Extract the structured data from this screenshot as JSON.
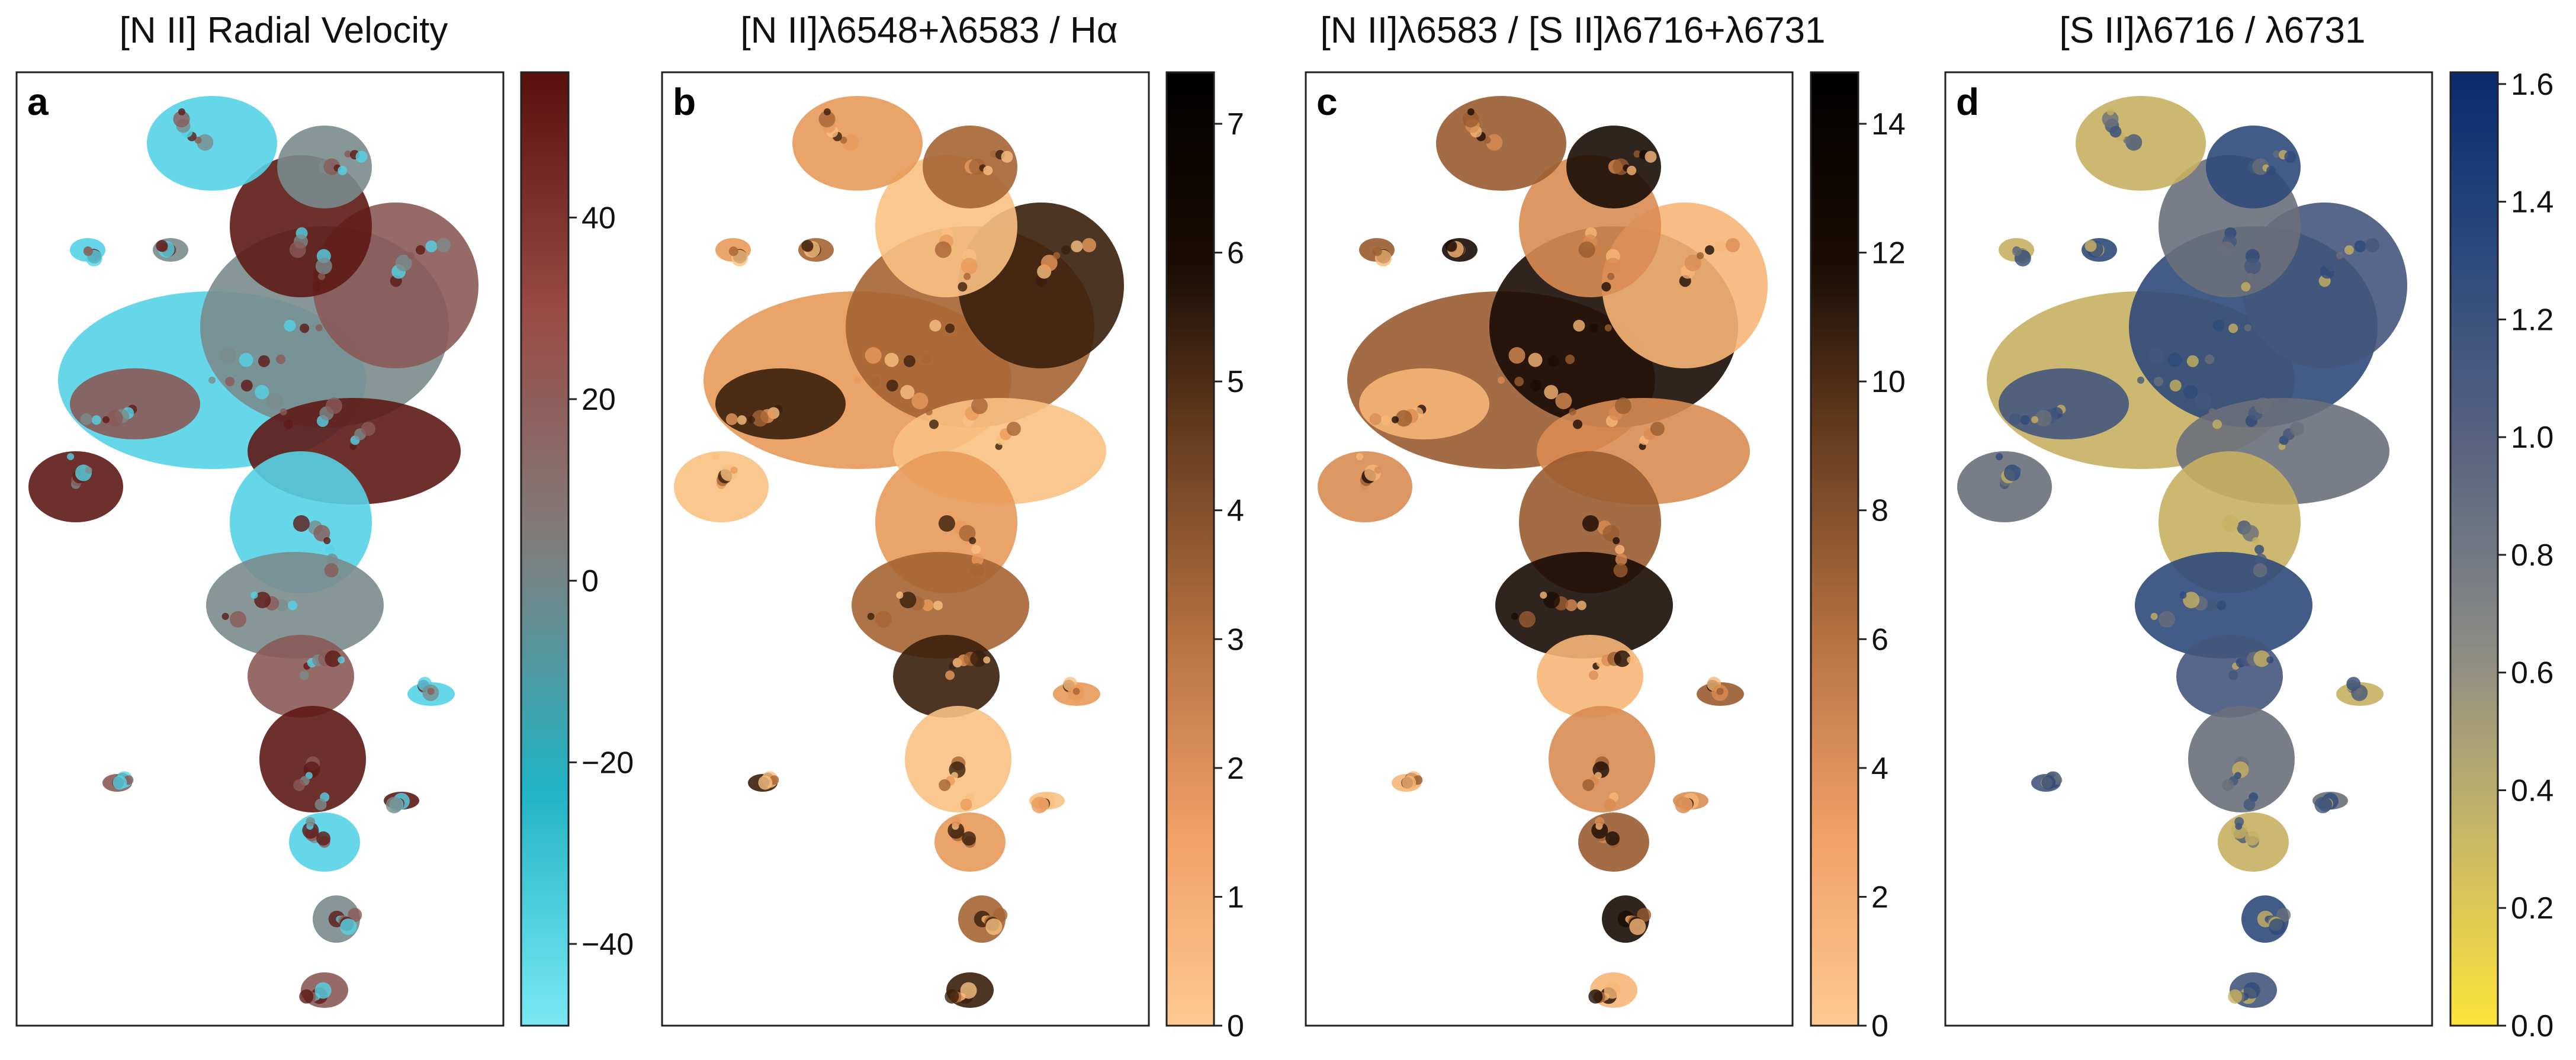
{
  "chart_data": [
    {
      "type": "heatmap",
      "panel_label": "a",
      "title": "[N II] Radial Velocity",
      "colorbar": {
        "range": [
          -49,
          56
        ],
        "ticks": [
          -40,
          -20,
          0,
          20,
          40
        ],
        "tick_labels": [
          "−40",
          "−20",
          "0",
          "20",
          "40"
        ],
        "colors": [
          "#7ae8f5",
          "#1fb3c4",
          "#7f7f7f",
          "#9b4a44",
          "#5a0f0d"
        ]
      },
      "map_colors": [
        "#55d3e6",
        "#7a8c8c",
        "#8a5a56",
        "#5e1a16"
      ]
    },
    {
      "type": "heatmap",
      "panel_label": "b",
      "title": "[N II]λ6548+λ6583 / Hα",
      "colorbar": {
        "range": [
          0,
          7.4
        ],
        "ticks": [
          0,
          1,
          2,
          3,
          4,
          5,
          6,
          7
        ],
        "tick_labels": [
          "0",
          "1",
          "2",
          "3",
          "4",
          "5",
          "6",
          "7"
        ],
        "colors": [
          "#fdc98e",
          "#f2a065",
          "#b87342",
          "#6e4121",
          "#1a0c05",
          "#000000"
        ]
      },
      "map_colors": [
        "#f9c182",
        "#e89a5a",
        "#a66434",
        "#3a1f0c"
      ]
    },
    {
      "type": "heatmap",
      "panel_label": "c",
      "title": "[N II]λ6583 / [S II]λ6716+λ6731",
      "colorbar": {
        "range": [
          0,
          14.8
        ],
        "ticks": [
          0,
          2,
          4,
          6,
          8,
          10,
          12,
          14
        ],
        "tick_labels": [
          "0",
          "2",
          "4",
          "6",
          "8",
          "10",
          "12",
          "14"
        ],
        "colors": [
          "#fdc98e",
          "#f2a065",
          "#b87342",
          "#6e4121",
          "#1a0c05",
          "#000000"
        ]
      },
      "map_colors": [
        "#f7b677",
        "#d98c52",
        "#9a5c30",
        "#1a0c05"
      ]
    },
    {
      "type": "heatmap",
      "panel_label": "d",
      "title": "[S II]λ6716 / λ6731",
      "colorbar": {
        "range": [
          0,
          1.62
        ],
        "ticks": [
          0,
          0.2,
          0.4,
          0.6,
          0.8,
          1.0,
          1.2,
          1.4,
          1.6
        ],
        "tick_labels": [
          "0.0",
          "0.2",
          "0.4",
          "0.6",
          "0.8",
          "1.0",
          "1.2",
          "1.4",
          "1.6"
        ],
        "colors": [
          "#fde33a",
          "#c8b765",
          "#8a8a85",
          "#5a6580",
          "#2e4b7e",
          "#0a2a6e"
        ]
      },
      "map_colors": [
        "#2f4a7a",
        "#44577c",
        "#6a6f7a",
        "#c7b060"
      ]
    }
  ]
}
